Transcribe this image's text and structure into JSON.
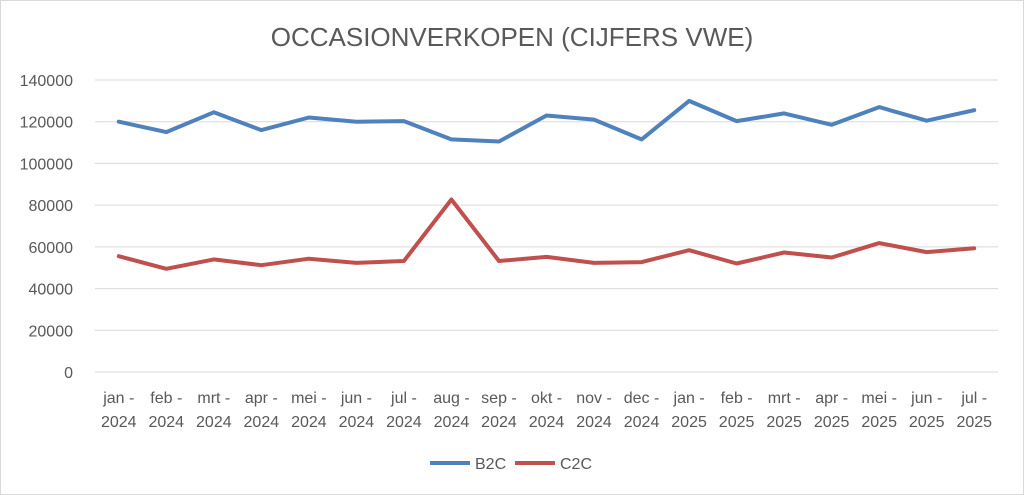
{
  "chart_data": {
    "type": "line",
    "title": "OCCASIONVERKOPEN (CIJFERS VWE)",
    "xlabel": "",
    "ylabel": "",
    "categories": [
      [
        "jan -",
        "2024"
      ],
      [
        "feb -",
        "2024"
      ],
      [
        "mrt -",
        "2024"
      ],
      [
        "apr -",
        "2024"
      ],
      [
        "mei -",
        "2024"
      ],
      [
        "jun -",
        "2024"
      ],
      [
        "jul -",
        "2024"
      ],
      [
        "aug -",
        "2024"
      ],
      [
        "sep -",
        "2024"
      ],
      [
        "okt -",
        "2024"
      ],
      [
        "nov -",
        "2024"
      ],
      [
        "dec -",
        "2024"
      ],
      [
        "jan -",
        "2025"
      ],
      [
        "feb -",
        "2025"
      ],
      [
        "mrt -",
        "2025"
      ],
      [
        "apr -",
        "2025"
      ],
      [
        "mei -",
        "2025"
      ],
      [
        "jun -",
        "2025"
      ],
      [
        "jul -",
        "2025"
      ]
    ],
    "ylim": [
      0,
      140000
    ],
    "yticks": [
      "0",
      "20000",
      "40000",
      "60000",
      "80000",
      "100000",
      "120000",
      "140000"
    ],
    "grid": true,
    "legend_position": "bottom",
    "series": [
      {
        "name": "B2C",
        "color": "#4f81bd",
        "values": [
          120000,
          115000,
          124500,
          116000,
          122000,
          120000,
          120300,
          111500,
          110500,
          123000,
          121000,
          111500,
          130000,
          120300,
          124000,
          118500,
          127000,
          120500,
          125500
        ]
      },
      {
        "name": "C2C",
        "color": "#c0504d",
        "values": [
          55500,
          49500,
          54000,
          51200,
          54300,
          52300,
          53200,
          82700,
          53200,
          55200,
          52300,
          52700,
          58400,
          52000,
          57300,
          54900,
          61800,
          57500,
          59300
        ]
      }
    ]
  }
}
